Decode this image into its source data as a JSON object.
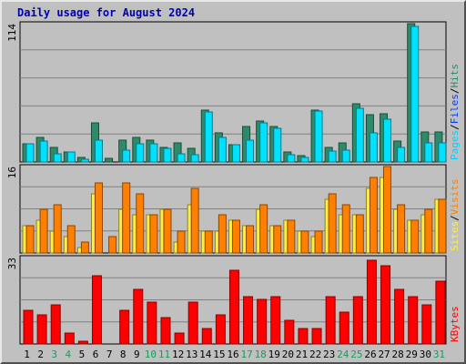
{
  "title": "Daily usage for August 2024",
  "colors": {
    "hits": "#2e8b6a",
    "files": "#00e0ff",
    "pages": "#00d0ff",
    "visits": "#ff8000",
    "sites": "#ffee40",
    "kbytes": "#ff0000",
    "weekend": "#1c9a5c",
    "weekday": "#000000",
    "title": "#0000b0"
  },
  "chart_data": [
    {
      "type": "bar",
      "name": "top",
      "ymax_label": "114",
      "ylim": [
        0,
        114
      ],
      "legend": [
        "Pages",
        "Files",
        "Hits"
      ],
      "legend_colors": [
        "#00d0ff",
        "#0040ff",
        "#2e8b6a"
      ],
      "categories": [
        "1",
        "2",
        "3",
        "4",
        "5",
        "6",
        "7",
        "8",
        "9",
        "10",
        "11",
        "12",
        "13",
        "14",
        "15",
        "16",
        "17",
        "18",
        "19",
        "20",
        "21",
        "22",
        "23",
        "24",
        "25",
        "26",
        "27",
        "28",
        "29",
        "30",
        "31"
      ],
      "series": [
        {
          "name": "Hits",
          "values": [
            15,
            20,
            12,
            8,
            4,
            32,
            3,
            18,
            20,
            18,
            12,
            16,
            11,
            43,
            24,
            14,
            29,
            34,
            29,
            8,
            5,
            43,
            12,
            16,
            48,
            39,
            40,
            17,
            114,
            25,
            25
          ]
        },
        {
          "name": "Files",
          "values": [
            15,
            17,
            7,
            8,
            2,
            18,
            0,
            10,
            15,
            15,
            11,
            7,
            6,
            41,
            20,
            14,
            18,
            32,
            28,
            6,
            4,
            42,
            9,
            10,
            44,
            24,
            35,
            12,
            112,
            16,
            16
          ]
        }
      ]
    },
    {
      "type": "bar",
      "name": "middle",
      "ymax_label": "16",
      "ylim": [
        0,
        16
      ],
      "legend": [
        "Sites",
        "Visits"
      ],
      "legend_colors": [
        "#ffee40",
        "#ff8000"
      ],
      "categories": [
        "1",
        "2",
        "3",
        "4",
        "5",
        "6",
        "7",
        "8",
        "9",
        "10",
        "11",
        "12",
        "13",
        "14",
        "15",
        "16",
        "17",
        "18",
        "19",
        "20",
        "21",
        "22",
        "23",
        "24",
        "25",
        "26",
        "27",
        "28",
        "29",
        "30",
        "31"
      ],
      "series": [
        {
          "name": "Sites",
          "values": [
            5,
            6,
            4,
            3,
            1,
            11,
            0,
            8,
            7,
            7,
            8,
            2,
            9,
            4,
            4,
            6,
            5,
            8,
            5,
            6,
            4,
            3,
            10,
            7,
            7,
            12,
            14,
            8,
            6,
            7,
            10
          ]
        },
        {
          "name": "Visits",
          "values": [
            5,
            8,
            9,
            5,
            2,
            13,
            3,
            13,
            11,
            7,
            8,
            4,
            12,
            4,
            7,
            6,
            5,
            9,
            5,
            6,
            4,
            4,
            11,
            9,
            7,
            14,
            16,
            9,
            6,
            8,
            10
          ]
        }
      ]
    },
    {
      "type": "bar",
      "name": "bottom",
      "ymax_label": "33",
      "ylim": [
        0,
        33
      ],
      "legend": [
        "KBytes"
      ],
      "legend_colors": [
        "#ff0000"
      ],
      "categories": [
        "1",
        "2",
        "3",
        "4",
        "5",
        "6",
        "7",
        "8",
        "9",
        "10",
        "11",
        "12",
        "13",
        "14",
        "15",
        "16",
        "17",
        "18",
        "19",
        "20",
        "21",
        "22",
        "23",
        "24",
        "25",
        "26",
        "27",
        "28",
        "29",
        "30",
        "31"
      ],
      "series": [
        {
          "name": "KBytes",
          "values": [
            13,
            11,
            15,
            4,
            1,
            26,
            0,
            13,
            21,
            16,
            10,
            4,
            16,
            6,
            11,
            28,
            18,
            17,
            18,
            9,
            6,
            6,
            18,
            12,
            18,
            32,
            30,
            21,
            18,
            15,
            24
          ]
        }
      ]
    }
  ],
  "weekend_days": [
    "3",
    "4",
    "10",
    "11",
    "17",
    "18",
    "24",
    "25",
    "31"
  ],
  "slash": "/"
}
